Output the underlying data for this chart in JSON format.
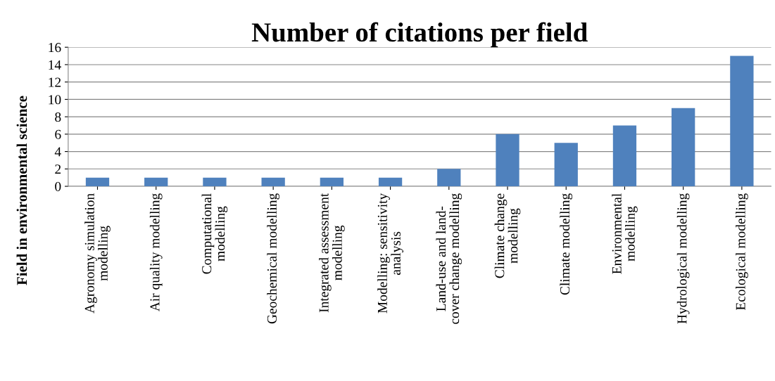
{
  "chart_data": {
    "type": "bar",
    "title": "Number of citations per field",
    "ylabel": "Field in environmental science",
    "categories": [
      "Agronomy simulation\nmodelling",
      "Air quality modelling",
      "Computational\nmodelling",
      "Geochemical modelling",
      "Integrated assessment\nmodelling",
      "Modelling: sensitivity\nanalysis",
      "Land-use and land-\ncover change modelling",
      "Climate change\nmodelling",
      "Climate modelling",
      "Environmental\nmodelling",
      "Hydrological modelling",
      "Ecological modelling"
    ],
    "values": [
      1,
      1,
      1,
      1,
      1,
      1,
      2,
      6,
      5,
      7,
      9,
      15
    ],
    "color": "#4f81bd",
    "ylim": [
      0,
      16
    ],
    "yticks": [
      0,
      2,
      4,
      6,
      8,
      10,
      12,
      14,
      16
    ],
    "grid": "y",
    "legend": false
  }
}
